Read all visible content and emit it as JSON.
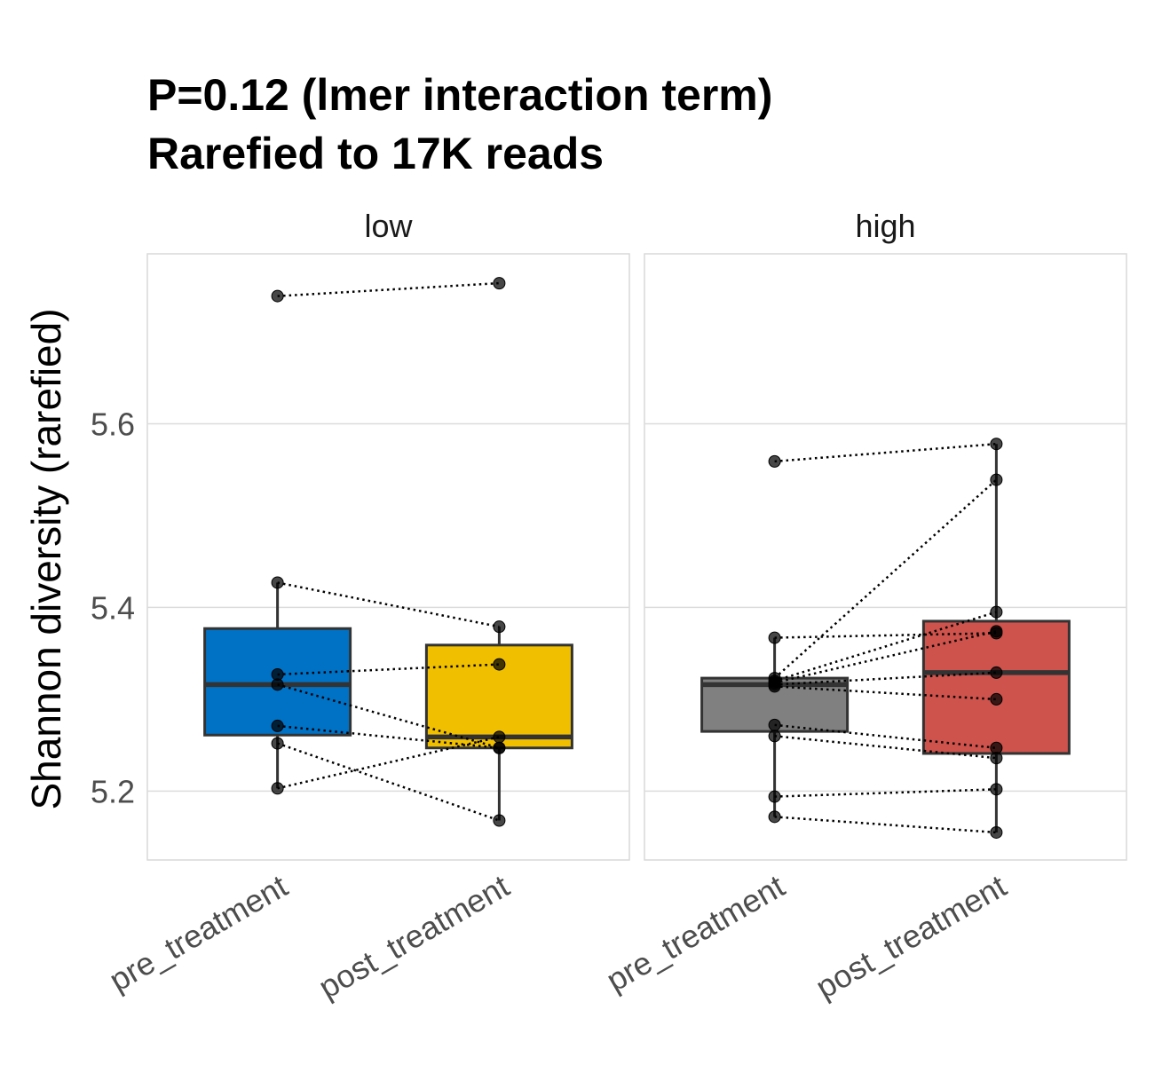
{
  "chart_data": {
    "type": "box",
    "title_lines": [
      "P=0.12 (lmer interaction term)",
      "Rarefied to 17K reads"
    ],
    "ylabel": "Shannon diversity (rarefied)",
    "ylim": [
      5.125,
      5.785
    ],
    "yticks": [
      5.2,
      5.4,
      5.6
    ],
    "ytick_labels": [
      "5.2",
      "5.4",
      "5.6"
    ],
    "categories": [
      "pre_treatment",
      "post_treatment"
    ],
    "panels": [
      {
        "name": "low",
        "boxes": [
          {
            "category": "pre_treatment",
            "color": "#0072C6",
            "q1": 5.261,
            "median": 5.316,
            "q3": 5.377,
            "whisker_low": 5.203,
            "whisker_high": 5.427
          },
          {
            "category": "post_treatment",
            "color": "#F0BF00",
            "q1": 5.247,
            "median": 5.259,
            "q3": 5.359,
            "whisker_low": 5.168,
            "whisker_high": 5.379
          }
        ],
        "pairs": [
          [
            5.739,
            5.753
          ],
          [
            5.427,
            5.379
          ],
          [
            5.327,
            5.338
          ],
          [
            5.316,
            5.247
          ],
          [
            5.271,
            5.247
          ],
          [
            5.252,
            5.168
          ],
          [
            5.203,
            5.259
          ]
        ]
      },
      {
        "name": "high",
        "boxes": [
          {
            "category": "pre_treatment",
            "color": "#808080",
            "q1": 5.265,
            "median": 5.316,
            "q3": 5.323,
            "whisker_low": 5.172,
            "whisker_high": 5.367
          },
          {
            "category": "post_treatment",
            "color": "#CD534C",
            "q1": 5.241,
            "median": 5.329,
            "q3": 5.385,
            "whisker_low": 5.155,
            "whisker_high": 5.578
          }
        ],
        "pairs": [
          [
            5.559,
            5.578
          ],
          [
            5.367,
            5.372
          ],
          [
            5.323,
            5.539
          ],
          [
            5.32,
            5.395
          ],
          [
            5.318,
            5.374
          ],
          [
            5.316,
            5.329
          ],
          [
            5.314,
            5.3
          ],
          [
            5.272,
            5.247
          ],
          [
            5.26,
            5.236
          ],
          [
            5.194,
            5.202
          ],
          [
            5.172,
            5.155
          ]
        ]
      }
    ]
  }
}
